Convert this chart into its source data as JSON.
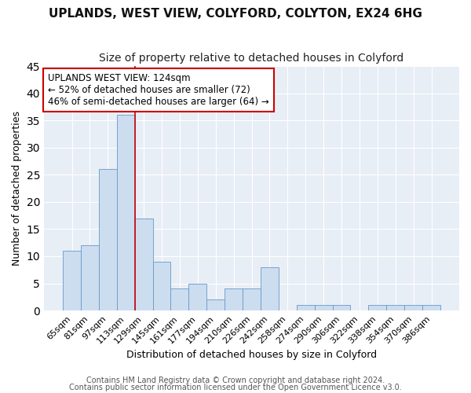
{
  "title": "UPLANDS, WEST VIEW, COLYFORD, COLYTON, EX24 6HG",
  "subtitle": "Size of property relative to detached houses in Colyford",
  "xlabel": "Distribution of detached houses by size in Colyford",
  "ylabel": "Number of detached properties",
  "categories": [
    "65sqm",
    "81sqm",
    "97sqm",
    "113sqm",
    "129sqm",
    "145sqm",
    "161sqm",
    "177sqm",
    "194sqm",
    "210sqm",
    "226sqm",
    "242sqm",
    "258sqm",
    "274sqm",
    "290sqm",
    "306sqm",
    "322sqm",
    "338sqm",
    "354sqm",
    "370sqm",
    "386sqm"
  ],
  "values": [
    11,
    12,
    26,
    36,
    17,
    9,
    4,
    5,
    2,
    4,
    4,
    8,
    0,
    1,
    1,
    1,
    0,
    1,
    1,
    1,
    1
  ],
  "bar_color": "#ccddef",
  "bar_edge_color": "#6699cc",
  "vline_x": 4.0,
  "vline_color": "#cc0000",
  "annotation_text": "UPLANDS WEST VIEW: 124sqm\n← 52% of detached houses are smaller (72)\n46% of semi-detached houses are larger (64) →",
  "annotation_box_color": "#ffffff",
  "annotation_box_edge": "#cc0000",
  "ylim": [
    0,
    45
  ],
  "yticks": [
    0,
    5,
    10,
    15,
    20,
    25,
    30,
    35,
    40,
    45
  ],
  "footer1": "Contains HM Land Registry data © Crown copyright and database right 2024.",
  "footer2": "Contains public sector information licensed under the Open Government Licence v3.0.",
  "background_color": "#e8eef5",
  "title_fontsize": 11,
  "subtitle_fontsize": 10,
  "xlabel_fontsize": 9,
  "ylabel_fontsize": 9,
  "tick_fontsize": 8,
  "footer_fontsize": 7
}
